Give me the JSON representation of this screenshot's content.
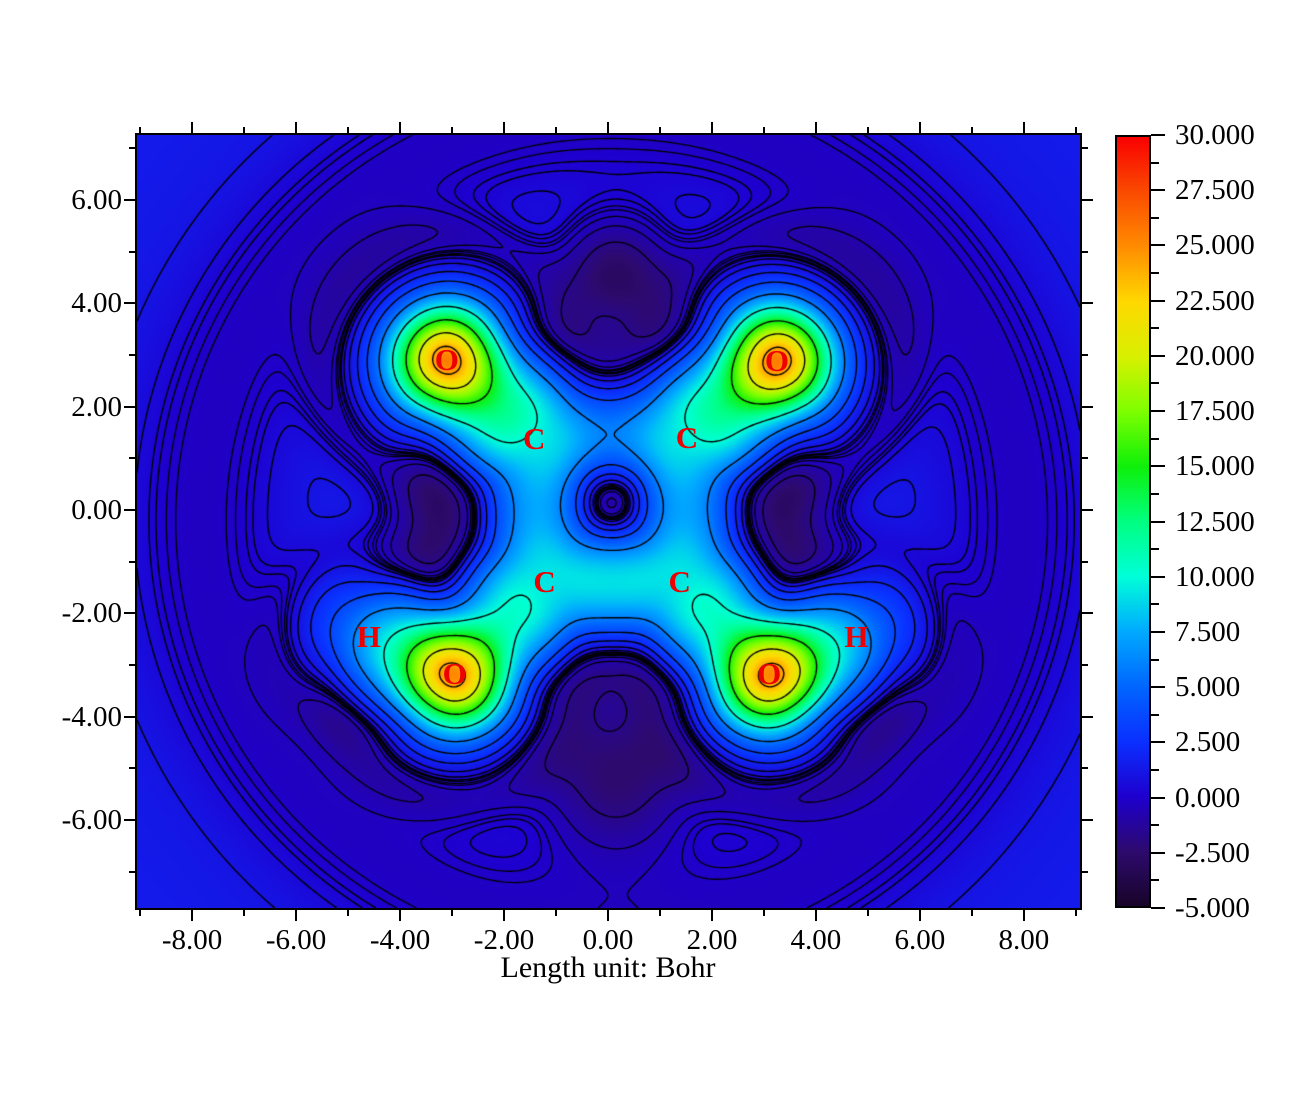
{
  "chart_data": {
    "type": "heatmap",
    "title": "",
    "xlabel": "Length unit: Bohr",
    "axes": {
      "xlim": [
        -9.06,
        9.08
      ],
      "ylim": [
        -7.7,
        7.26
      ],
      "x_major_ticks": {
        "values": [
          -8,
          -6,
          -4,
          -2,
          0,
          2,
          4,
          6,
          8
        ],
        "labels": [
          "-8.00",
          "-6.00",
          "-4.00",
          "-2.00",
          "0.00",
          "2.00",
          "4.00",
          "6.00",
          "8.00"
        ]
      },
      "x_minor_ticks": [
        -9,
        -7,
        -5,
        -3,
        -1,
        1,
        3,
        5,
        7,
        9
      ],
      "y_major_ticks": {
        "values": [
          6,
          4,
          2,
          0,
          -2,
          -4,
          -6
        ],
        "labels": [
          "6.00",
          "4.00",
          "2.00",
          "0.00",
          "-2.00",
          "-4.00",
          "-6.00"
        ]
      },
      "y_minor_ticks": [
        7,
        5,
        3,
        1,
        -1,
        -3,
        -5,
        -7
      ],
      "grid": false
    },
    "colorbar": {
      "min": -5.0,
      "max": 30.0,
      "major_step": 2.5,
      "minor_step": 1.25,
      "tick_labels": [
        "30.000",
        "27.500",
        "25.000",
        "22.500",
        "20.000",
        "17.500",
        "15.000",
        "12.500",
        "10.000",
        "7.500",
        "5.000",
        "2.500",
        "0.000",
        "-2.500",
        "-5.000"
      ],
      "stops": [
        [
          -5.0,
          "#180428"
        ],
        [
          -2.5,
          "#2d0a6e"
        ],
        [
          0.0,
          "#1e00cf"
        ],
        [
          2.5,
          "#0a30ff"
        ],
        [
          5.0,
          "#0066ff"
        ],
        [
          7.5,
          "#00aaff"
        ],
        [
          10.0,
          "#00ffd8"
        ],
        [
          12.5,
          "#00ff80"
        ],
        [
          15.0,
          "#0ef00a"
        ],
        [
          17.5,
          "#7dff00"
        ],
        [
          20.0,
          "#d8f000"
        ],
        [
          22.5,
          "#ffd800"
        ],
        [
          25.0,
          "#ff8c00"
        ],
        [
          27.5,
          "#fa4a00"
        ],
        [
          30.0,
          "#fa0000"
        ]
      ],
      "position": "right"
    },
    "atom_label_color": "#ee0000",
    "atoms": [
      {
        "symbol": "O",
        "x": -3.1,
        "y": 2.9,
        "peak": {
          "amp": 25,
          "sigma": 1.02,
          "p": 2.0,
          "shell": [
            1.6,
            2.35,
            0.6
          ]
        }
      },
      {
        "symbol": "O",
        "x": 3.25,
        "y": 2.88,
        "peak": {
          "amp": 25,
          "sigma": 1.02,
          "p": 2.0,
          "shell": [
            1.6,
            2.35,
            0.6
          ]
        }
      },
      {
        "symbol": "O",
        "x": -2.95,
        "y": -3.18,
        "peak": {
          "amp": 25,
          "sigma": 1.02,
          "p": 2.0,
          "shell": [
            1.6,
            2.35,
            0.6
          ]
        }
      },
      {
        "symbol": "O",
        "x": 3.1,
        "y": -3.18,
        "peak": {
          "amp": 25,
          "sigma": 1.02,
          "p": 2.0,
          "shell": [
            1.6,
            2.35,
            0.6
          ]
        }
      },
      {
        "symbol": "C",
        "x": -1.42,
        "y": 1.38,
        "peak": {
          "amp": 10,
          "sigma": 1.35,
          "p": 2.8,
          "shell": [
            1.0,
            2.1,
            0.55
          ]
        }
      },
      {
        "symbol": "C",
        "x": 1.52,
        "y": 1.4,
        "peak": {
          "amp": 10,
          "sigma": 1.35,
          "p": 2.8,
          "shell": [
            1.0,
            2.1,
            0.55
          ]
        }
      },
      {
        "symbol": "C",
        "x": -1.22,
        "y": -1.4,
        "peak": {
          "amp": 10,
          "sigma": 1.35,
          "p": 2.8,
          "shell": [
            1.0,
            2.1,
            0.55
          ]
        }
      },
      {
        "symbol": "C",
        "x": 1.38,
        "y": -1.4,
        "peak": {
          "amp": 10,
          "sigma": 1.35,
          "p": 2.8,
          "shell": [
            1.0,
            2.1,
            0.55
          ]
        }
      },
      {
        "symbol": "H",
        "x": -4.6,
        "y": -2.45,
        "peak": {
          "amp": 6,
          "sigma": 1.1,
          "p": 2.2,
          "shell": [
            0.9,
            1.75,
            0.55
          ]
        }
      },
      {
        "symbol": "H",
        "x": 4.78,
        "y": -2.46,
        "peak": {
          "amp": 6,
          "sigma": 1.1,
          "p": 2.2,
          "shell": [
            0.9,
            1.75,
            0.55
          ]
        }
      }
    ],
    "field": {
      "background": 1.35,
      "ring": {
        "x": 0.07,
        "y": -0.2,
        "amp": -1.7,
        "r0": 7.9,
        "sigma": 1.6
      },
      "pockets": [
        {
          "x": 0.15,
          "y": 4.55,
          "amp": -4.2,
          "sigma": 1.1
        },
        {
          "x": 0.15,
          "y": -5.15,
          "amp": -3.8,
          "sigma": 1.5
        },
        {
          "x": -3.55,
          "y": -0.05,
          "amp": -2.2,
          "sigma": 0.8
        },
        {
          "x": 3.7,
          "y": -0.05,
          "amp": -2.2,
          "sigma": 0.8
        },
        {
          "x": 0.07,
          "y": 0.5,
          "amp": -1.0,
          "sigma": 0.85
        }
      ]
    },
    "contours": {
      "color": "#000000",
      "solid_levels": [
        0.08,
        0.2,
        0.45,
        1.0,
        2.0,
        3.5,
        6,
        10,
        15,
        20,
        24
      ],
      "dashed_levels": [
        -0.08,
        -0.2,
        -0.45,
        -0.9,
        -1.8,
        -3.0
      ],
      "dash_pattern": [
        6,
        5
      ]
    }
  }
}
